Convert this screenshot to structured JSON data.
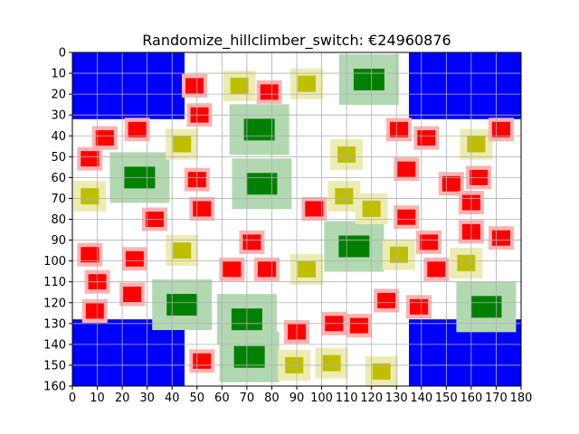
{
  "chart_data": {
    "type": "game_board",
    "title": "Randomize_hillclimber_switch: €24960876",
    "xlim": [
      0,
      180
    ],
    "ylim": [
      160,
      0
    ],
    "y_inverted": true,
    "x_ticks": [
      0,
      10,
      20,
      30,
      40,
      50,
      60,
      70,
      80,
      90,
      100,
      110,
      120,
      130,
      140,
      150,
      160,
      170,
      180
    ],
    "y_ticks": [
      0,
      10,
      20,
      30,
      40,
      50,
      60,
      70,
      80,
      90,
      100,
      110,
      120,
      130,
      140,
      150,
      160
    ],
    "grid": true,
    "colors": {
      "corner": "#0000ff",
      "large_fill": "#008000",
      "large_halo": "#b2d8b2",
      "medium_fill": "#bfbf00",
      "medium_halo": "#ececb2",
      "small_fill": "#ff0000",
      "small_halo": "#ffb2b2"
    },
    "corner_zones": [
      {
        "x0": 0,
        "y0": 0,
        "x1": 45,
        "y1": 32
      },
      {
        "x0": 135,
        "y0": 0,
        "x1": 180,
        "y1": 32
      },
      {
        "x0": 0,
        "y0": 128,
        "x1": 45,
        "y1": 160
      },
      {
        "x0": 135,
        "y0": 128,
        "x1": 180,
        "y1": 160
      }
    ],
    "large_pieces": [
      {
        "x": 119,
        "y": 13
      },
      {
        "x": 75,
        "y": 37
      },
      {
        "x": 27,
        "y": 60
      },
      {
        "x": 76,
        "y": 63
      },
      {
        "x": 113,
        "y": 93
      },
      {
        "x": 44,
        "y": 121
      },
      {
        "x": 70,
        "y": 128
      },
      {
        "x": 166,
        "y": 122
      },
      {
        "x": 71,
        "y": 146
      }
    ],
    "medium_pieces": [
      {
        "x": 67,
        "y": 16
      },
      {
        "x": 94,
        "y": 15
      },
      {
        "x": 44,
        "y": 44
      },
      {
        "x": 110,
        "y": 49
      },
      {
        "x": 162,
        "y": 44
      },
      {
        "x": 7,
        "y": 69
      },
      {
        "x": 109,
        "y": 69
      },
      {
        "x": 120,
        "y": 75
      },
      {
        "x": 44,
        "y": 95
      },
      {
        "x": 131,
        "y": 97
      },
      {
        "x": 158,
        "y": 101
      },
      {
        "x": 94,
        "y": 104
      },
      {
        "x": 89,
        "y": 150
      },
      {
        "x": 104,
        "y": 149
      },
      {
        "x": 124,
        "y": 153
      }
    ],
    "small_pieces": [
      {
        "x": 49,
        "y": 16
      },
      {
        "x": 79,
        "y": 19
      },
      {
        "x": 51,
        "y": 30
      },
      {
        "x": 26,
        "y": 37
      },
      {
        "x": 13,
        "y": 41
      },
      {
        "x": 131,
        "y": 37
      },
      {
        "x": 142,
        "y": 41
      },
      {
        "x": 172,
        "y": 37
      },
      {
        "x": 7,
        "y": 51
      },
      {
        "x": 134,
        "y": 56
      },
      {
        "x": 50,
        "y": 61
      },
      {
        "x": 152,
        "y": 63
      },
      {
        "x": 163,
        "y": 60
      },
      {
        "x": 160,
        "y": 72
      },
      {
        "x": 52,
        "y": 75
      },
      {
        "x": 97,
        "y": 75
      },
      {
        "x": 33,
        "y": 80
      },
      {
        "x": 134,
        "y": 79
      },
      {
        "x": 160,
        "y": 86
      },
      {
        "x": 72,
        "y": 91
      },
      {
        "x": 143,
        "y": 91
      },
      {
        "x": 172,
        "y": 89
      },
      {
        "x": 7,
        "y": 97
      },
      {
        "x": 25,
        "y": 99
      },
      {
        "x": 64,
        "y": 104
      },
      {
        "x": 78,
        "y": 104
      },
      {
        "x": 146,
        "y": 104
      },
      {
        "x": 10,
        "y": 110
      },
      {
        "x": 24,
        "y": 116
      },
      {
        "x": 126,
        "y": 119
      },
      {
        "x": 9,
        "y": 124
      },
      {
        "x": 139,
        "y": 122
      },
      {
        "x": 90,
        "y": 134
      },
      {
        "x": 105,
        "y": 130
      },
      {
        "x": 115,
        "y": 131
      },
      {
        "x": 52,
        "y": 148
      }
    ]
  }
}
